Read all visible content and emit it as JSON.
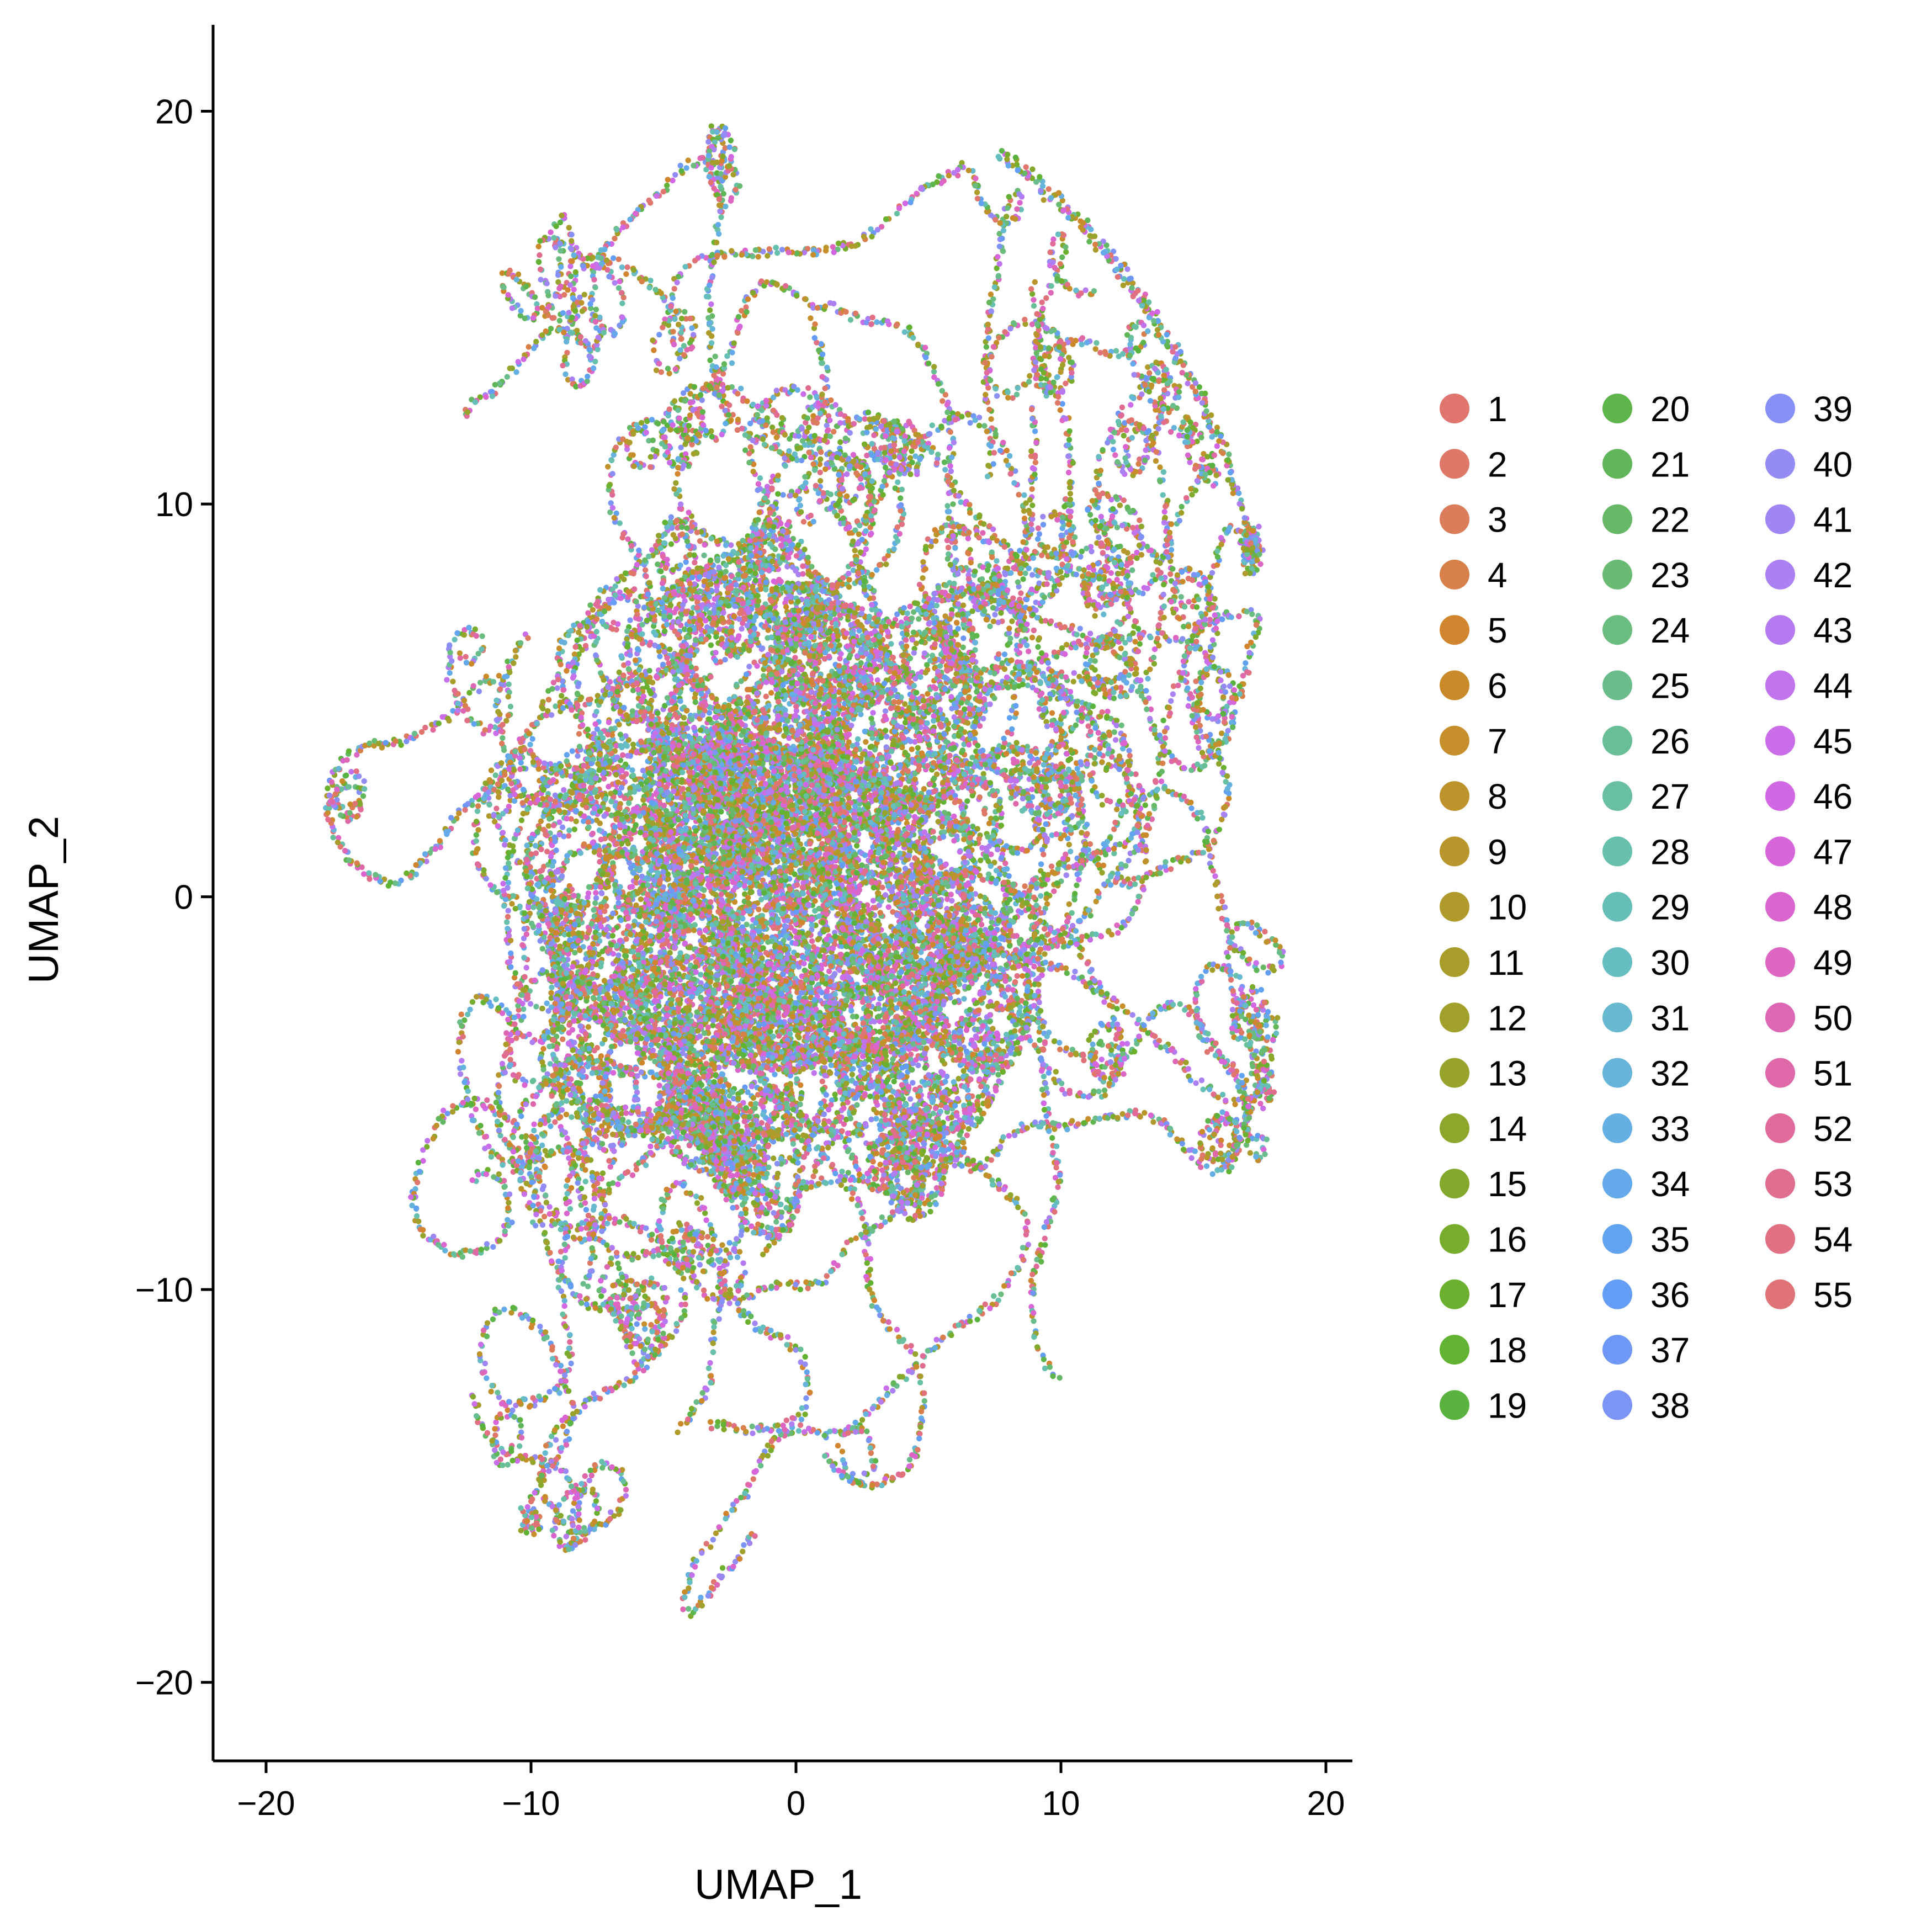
{
  "chart_data": {
    "type": "scatter",
    "title": "",
    "xlabel": "UMAP_1",
    "ylabel": "UMAP_2",
    "xlim": [
      -22,
      21
    ],
    "ylim": [
      -22,
      22.2
    ],
    "xticks": [
      -20,
      -10,
      0,
      10,
      20
    ],
    "yticks": [
      -20,
      -10,
      0,
      10,
      20
    ],
    "xtick_labels": [
      "−20",
      "−10",
      "0",
      "10",
      "20"
    ],
    "ytick_labels": [
      "−20",
      "−10",
      "0",
      "10",
      "20"
    ],
    "grid": false,
    "legend_position": "right",
    "legend_columns": 3,
    "point_description": "approx. 14000 cells arranged in many thin worm-like strands radiating from the center; colors intermixed along each strand",
    "series": [
      {
        "name": "1",
        "color": "#E0766E"
      },
      {
        "name": "2",
        "color": "#DE7967"
      },
      {
        "name": "3",
        "color": "#DB7C5B"
      },
      {
        "name": "4",
        "color": "#D7804A"
      },
      {
        "name": "5",
        "color": "#D1852F"
      },
      {
        "name": "6",
        "color": "#CB8A2A"
      },
      {
        "name": "7",
        "color": "#C68F2B"
      },
      {
        "name": "8",
        "color": "#BF932B"
      },
      {
        "name": "9",
        "color": "#B8962B"
      },
      {
        "name": "10",
        "color": "#B09A2B"
      },
      {
        "name": "11",
        "color": "#A89D2B"
      },
      {
        "name": "12",
        "color": "#A0A02B"
      },
      {
        "name": "13",
        "color": "#97A32B"
      },
      {
        "name": "14",
        "color": "#8DA62B"
      },
      {
        "name": "15",
        "color": "#83A92C"
      },
      {
        "name": "16",
        "color": "#78AC2D"
      },
      {
        "name": "17",
        "color": "#6CB02F"
      },
      {
        "name": "18",
        "color": "#62B233"
      },
      {
        "name": "19",
        "color": "#5BB33F"
      },
      {
        "name": "20",
        "color": "#5EB54C"
      },
      {
        "name": "21",
        "color": "#62B65A"
      },
      {
        "name": "22",
        "color": "#66B867"
      },
      {
        "name": "23",
        "color": "#69BA73"
      },
      {
        "name": "24",
        "color": "#6ABC7F"
      },
      {
        "name": "25",
        "color": "#6ABD8A"
      },
      {
        "name": "26",
        "color": "#69BF95"
      },
      {
        "name": "27",
        "color": "#68C0A0"
      },
      {
        "name": "28",
        "color": "#67C0AB"
      },
      {
        "name": "29",
        "color": "#66BFB6"
      },
      {
        "name": "30",
        "color": "#66BDC2"
      },
      {
        "name": "31",
        "color": "#66B9CE"
      },
      {
        "name": "32",
        "color": "#66B4DA"
      },
      {
        "name": "33",
        "color": "#66AFE3"
      },
      {
        "name": "34",
        "color": "#64A9EA"
      },
      {
        "name": "35",
        "color": "#62A3F0"
      },
      {
        "name": "36",
        "color": "#639DF5"
      },
      {
        "name": "37",
        "color": "#6F98F6"
      },
      {
        "name": "38",
        "color": "#7C94F6"
      },
      {
        "name": "39",
        "color": "#8890F6"
      },
      {
        "name": "40",
        "color": "#948BF5"
      },
      {
        "name": "41",
        "color": "#A086F4"
      },
      {
        "name": "42",
        "color": "#AB80F2"
      },
      {
        "name": "43",
        "color": "#B67AF0"
      },
      {
        "name": "44",
        "color": "#C073ED"
      },
      {
        "name": "45",
        "color": "#C96DE8"
      },
      {
        "name": "46",
        "color": "#D167E2"
      },
      {
        "name": "47",
        "color": "#D865DA"
      },
      {
        "name": "48",
        "color": "#DB65CF"
      },
      {
        "name": "49",
        "color": "#DD66C2"
      },
      {
        "name": "50",
        "color": "#DE67B5"
      },
      {
        "name": "51",
        "color": "#DF69A8"
      },
      {
        "name": "52",
        "color": "#E06B9B"
      },
      {
        "name": "53",
        "color": "#E06D8E"
      },
      {
        "name": "54",
        "color": "#E07082"
      },
      {
        "name": "55",
        "color": "#E07377"
      }
    ]
  }
}
